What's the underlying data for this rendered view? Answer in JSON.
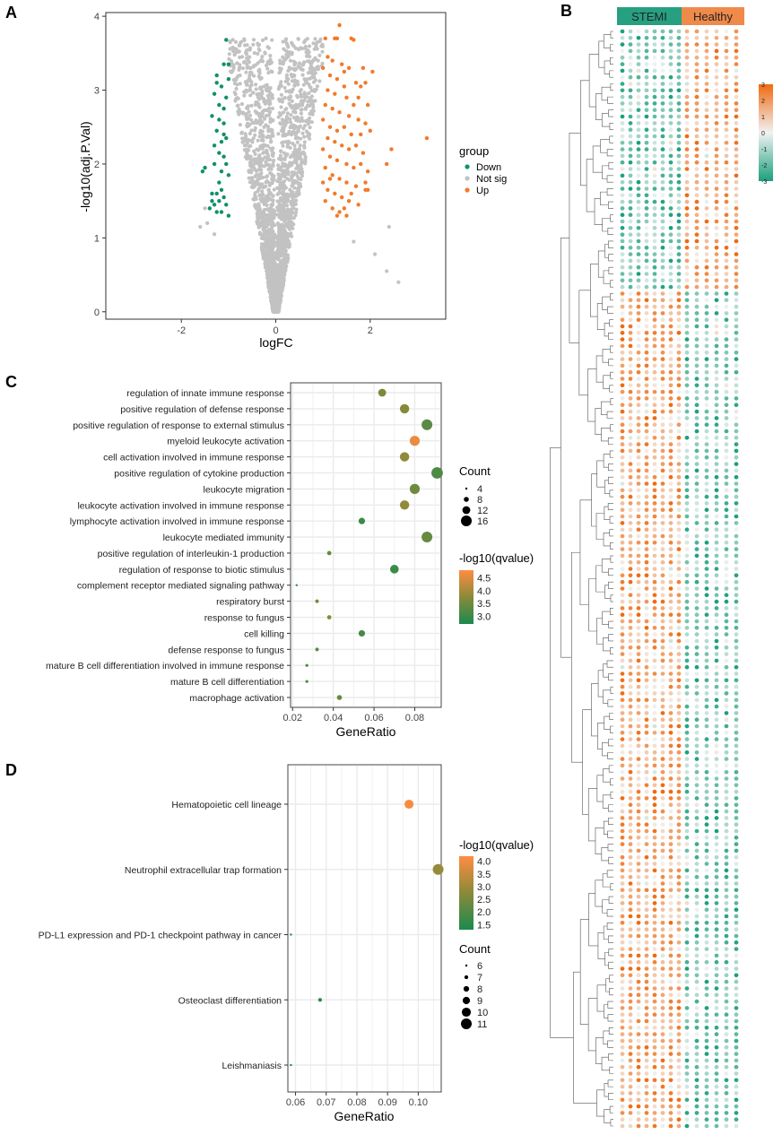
{
  "figure": {
    "panel_labels": [
      "A",
      "B",
      "C",
      "D"
    ]
  },
  "colors": {
    "down": "#11906a",
    "up": "#f27a2a",
    "notsig": "#c2c2c2",
    "grid": "#ebebeb",
    "q_low": "#1a8a4e",
    "q_mid": "#8a8a3a",
    "q_high": "#ff8c42",
    "heat_low": "#1aa07c",
    "heat_mid": "#f2f2f2",
    "heat_high": "#f06a10",
    "stemi_bar": "#27a082",
    "healthy_bar": "#f08a4a"
  },
  "chart_data": [
    {
      "id": "A",
      "type": "scatter",
      "title": "",
      "xlabel": "logFC",
      "ylabel": "-log10(adj.P.Val)",
      "xlim": [
        -3.6,
        3.6
      ],
      "ylim": [
        -0.1,
        4.05
      ],
      "xticks": [
        -2,
        0,
        2
      ],
      "yticks": [
        0,
        1,
        2,
        3,
        4
      ],
      "legend": {
        "title": "group",
        "position": "right",
        "labels": [
          "Down",
          "Not sig",
          "Up"
        ]
      },
      "thresholds": {
        "logfc": 1
      },
      "generated_background": {
        "count": 2400,
        "description": "Not sig points forming a volcano shape"
      },
      "down_points": [
        [
          -1.05,
          3.68
        ],
        [
          -1.1,
          3.35
        ],
        [
          -1.0,
          3.35
        ],
        [
          -1.25,
          3.1
        ],
        [
          -1.15,
          3.05
        ],
        [
          -1.3,
          2.95
        ],
        [
          -1.05,
          2.9
        ],
        [
          -1.35,
          2.65
        ],
        [
          -1.2,
          2.6
        ],
        [
          -1.1,
          2.55
        ],
        [
          -1.25,
          2.45
        ],
        [
          -1.05,
          2.35
        ],
        [
          -1.15,
          2.3
        ],
        [
          -1.3,
          2.25
        ],
        [
          -1.2,
          2.15
        ],
        [
          -1.1,
          2.1
        ],
        [
          -1.5,
          1.95
        ],
        [
          -1.55,
          1.9
        ],
        [
          -1.15,
          1.9
        ],
        [
          -1.0,
          1.85
        ],
        [
          -1.25,
          1.6
        ],
        [
          -1.35,
          1.6
        ],
        [
          -1.1,
          1.55
        ],
        [
          -1.2,
          1.5
        ],
        [
          -1.3,
          1.45
        ],
        [
          -1.05,
          1.45
        ],
        [
          -1.4,
          1.4
        ],
        [
          -1.15,
          1.35
        ],
        [
          -1.25,
          1.35
        ],
        [
          -1.0,
          1.3
        ],
        [
          -1.2,
          2.8
        ],
        [
          -1.1,
          2.75
        ],
        [
          -1.3,
          2.0
        ],
        [
          -1.05,
          2.0
        ],
        [
          -1.15,
          1.65
        ],
        [
          -1.35,
          1.5
        ],
        [
          -1.25,
          3.2
        ],
        [
          -1.0,
          3.15
        ],
        [
          -1.1,
          2.4
        ],
        [
          -1.2,
          1.75
        ]
      ],
      "up_points": [
        [
          1.3,
          3.7
        ],
        [
          1.25,
          3.7
        ],
        [
          1.6,
          3.7
        ],
        [
          1.65,
          3.68
        ],
        [
          1.35,
          3.88
        ],
        [
          1.05,
          3.7
        ],
        [
          1.1,
          3.45
        ],
        [
          1.2,
          3.4
        ],
        [
          1.4,
          3.35
        ],
        [
          1.55,
          3.3
        ],
        [
          1.85,
          3.3
        ],
        [
          2.05,
          3.25
        ],
        [
          1.0,
          3.3
        ],
        [
          1.15,
          3.2
        ],
        [
          1.3,
          3.15
        ],
        [
          1.45,
          3.05
        ],
        [
          1.7,
          3.1
        ],
        [
          1.8,
          3.05
        ],
        [
          1.9,
          3.1
        ],
        [
          1.1,
          3.0
        ],
        [
          1.25,
          2.95
        ],
        [
          1.5,
          2.9
        ],
        [
          1.65,
          2.8
        ],
        [
          1.95,
          2.8
        ],
        [
          1.05,
          2.8
        ],
        [
          1.2,
          2.75
        ],
        [
          1.35,
          2.7
        ],
        [
          1.55,
          2.65
        ],
        [
          1.75,
          2.6
        ],
        [
          1.9,
          2.55
        ],
        [
          1.0,
          2.6
        ],
        [
          1.15,
          2.5
        ],
        [
          1.3,
          2.45
        ],
        [
          1.45,
          2.5
        ],
        [
          1.6,
          2.4
        ],
        [
          1.8,
          2.4
        ],
        [
          2.0,
          2.45
        ],
        [
          1.1,
          2.35
        ],
        [
          1.25,
          2.3
        ],
        [
          1.4,
          2.25
        ],
        [
          1.55,
          2.2
        ],
        [
          1.7,
          2.25
        ],
        [
          1.85,
          2.15
        ],
        [
          1.0,
          2.2
        ],
        [
          1.15,
          2.1
        ],
        [
          1.3,
          2.05
        ],
        [
          1.5,
          2.0
        ],
        [
          1.65,
          1.95
        ],
        [
          1.8,
          2.0
        ],
        [
          1.95,
          1.9
        ],
        [
          1.05,
          1.95
        ],
        [
          1.2,
          1.85
        ],
        [
          1.35,
          1.8
        ],
        [
          1.5,
          1.75
        ],
        [
          1.7,
          1.7
        ],
        [
          1.9,
          1.65
        ],
        [
          1.0,
          1.75
        ],
        [
          1.1,
          1.65
        ],
        [
          1.25,
          1.6
        ],
        [
          1.4,
          1.55
        ],
        [
          1.55,
          1.5
        ],
        [
          1.75,
          1.45
        ],
        [
          1.05,
          1.5
        ],
        [
          1.2,
          1.4
        ],
        [
          1.35,
          1.35
        ],
        [
          1.5,
          1.3
        ],
        [
          1.3,
          1.3
        ],
        [
          1.45,
          1.4
        ],
        [
          1.6,
          1.6
        ],
        [
          1.15,
          1.8
        ],
        [
          2.35,
          2.0
        ],
        [
          2.45,
          2.2
        ],
        [
          1.9,
          1.75
        ],
        [
          1.95,
          1.65
        ],
        [
          3.2,
          2.35
        ],
        [
          1.75,
          2.9
        ],
        [
          1.45,
          3.25
        ]
      ],
      "outliers_notsig": [
        [
          2.4,
          1.15
        ],
        [
          2.35,
          0.55
        ],
        [
          2.6,
          0.4
        ],
        [
          1.65,
          0.95
        ],
        [
          2.1,
          0.78
        ],
        [
          -1.5,
          1.4
        ],
        [
          -1.6,
          1.15
        ],
        [
          -1.3,
          1.05
        ],
        [
          -1.45,
          1.2
        ]
      ]
    },
    {
      "id": "B",
      "type": "heatmap",
      "groups": [
        "STEMI",
        "Healthy"
      ],
      "legend_ticks": [
        3,
        2,
        1,
        0,
        -1,
        -2,
        -3
      ],
      "value_range": [
        -3,
        3
      ],
      "columns_per_group": [
        8,
        6
      ],
      "rows": 168,
      "block_break_row": 40,
      "description": "Dotted heatmap; top block: STEMI low / Healthy high; bottom block: STEMI high / Healthy low"
    },
    {
      "id": "C",
      "type": "scatter",
      "subtype": "dotplot",
      "xlabel": "GeneRatio",
      "ylabel": "",
      "xlim": [
        0.019,
        0.093
      ],
      "xticks": [
        0.02,
        0.04,
        0.06,
        0.08
      ],
      "xtick_labels": [
        "0.02",
        "0.04",
        "0.06",
        "0.08"
      ],
      "terms": [
        "regulation of innate immune response",
        "positive regulation of defense response",
        "positive regulation of response to external stimulus",
        "myeloid leukocyte activation",
        "cell activation involved in immune response",
        "positive regulation of cytokine production",
        "leukocyte migration",
        "leukocyte activation involved in immune response",
        "lymphocyte activation involved in immune response",
        "leukocyte mediated immunity",
        "positive regulation of interleukin-1 production",
        "regulation of response to biotic stimulus",
        "complement receptor mediated signaling pathway",
        "respiratory burst",
        "response to fungus",
        "cell killing",
        "defense response to fungus",
        "mature B cell differentiation involved in immune response",
        "mature B cell differentiation",
        "macrophage activation"
      ],
      "gene_ratio": [
        0.064,
        0.075,
        0.086,
        0.08,
        0.075,
        0.091,
        0.08,
        0.075,
        0.054,
        0.086,
        0.038,
        0.07,
        0.022,
        0.032,
        0.038,
        0.054,
        0.032,
        0.027,
        0.027,
        0.043
      ],
      "count": [
        12,
        14,
        16,
        15,
        14,
        17,
        15,
        14,
        10,
        16,
        7,
        13,
        4,
        6,
        7,
        10,
        6,
        5,
        5,
        8
      ],
      "qvalue_log": [
        3.6,
        3.7,
        3.3,
        4.6,
        3.8,
        3.2,
        3.5,
        3.8,
        3.0,
        3.4,
        3.4,
        3.0,
        3.0,
        3.6,
        3.7,
        3.1,
        3.3,
        3.1,
        3.2,
        3.4
      ],
      "count_legend": {
        "title": "Count",
        "values": [
          4,
          8,
          12,
          16
        ]
      },
      "color_legend": {
        "title": "-log10(qvalue)",
        "range": [
          2.7,
          4.8
        ],
        "ticks": [
          4.5,
          4.0,
          3.5,
          3.0
        ],
        "tick_labels": [
          "4.5",
          "4.0",
          "3.5",
          "3.0"
        ]
      }
    },
    {
      "id": "D",
      "type": "scatter",
      "subtype": "dotplot",
      "xlabel": "GeneRatio",
      "ylabel": "",
      "xlim": [
        0.0575,
        0.1075
      ],
      "xticks": [
        0.06,
        0.07,
        0.08,
        0.09,
        0.1
      ],
      "xtick_labels": [
        "0.06",
        "0.07",
        "0.08",
        "0.09",
        "0.10"
      ],
      "terms": [
        "Hematopoietic cell lineage",
        "Neutrophil extracellular trap formation",
        "PD-L1 expression and PD-1 checkpoint pathway in cancer",
        "Osteoclast differentiation",
        "Leishmaniasis"
      ],
      "gene_ratio": [
        0.097,
        0.1065,
        0.0585,
        0.068,
        0.0585
      ],
      "count": [
        10,
        11,
        6,
        7,
        6
      ],
      "qvalue_log": [
        4.1,
        2.9,
        1.45,
        1.55,
        1.45
      ],
      "count_legend": {
        "title": "Count",
        "values": [
          6,
          7,
          8,
          9,
          10,
          11
        ]
      },
      "color_legend": {
        "title": "-log10(qvalue)",
        "range": [
          1.3,
          4.2
        ],
        "ticks": [
          4.0,
          3.5,
          3.0,
          2.5,
          2.0,
          1.5
        ],
        "tick_labels": [
          "4.0",
          "3.5",
          "3.0",
          "2.5",
          "2.0",
          "1.5"
        ]
      }
    }
  ]
}
